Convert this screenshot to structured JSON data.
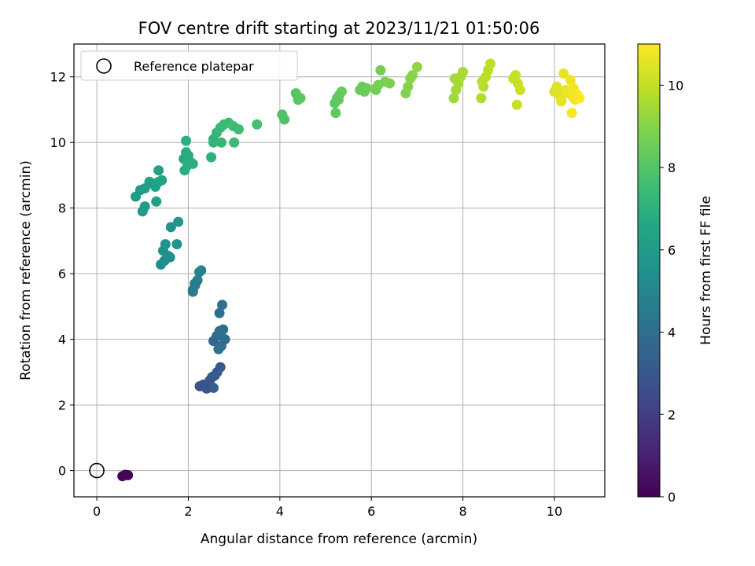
{
  "chart_data": {
    "type": "scatter",
    "title": "FOV centre drift starting at 2023/11/21 01:50:06",
    "xlabel": "Angular distance from reference (arcmin)",
    "ylabel": "Rotation from reference (arcmin)",
    "xlim": [
      -0.5,
      11.1
    ],
    "ylim": [
      -0.8,
      13.0
    ],
    "xticks": [
      0,
      2,
      4,
      6,
      8,
      10
    ],
    "yticks": [
      0,
      2,
      4,
      6,
      8,
      10,
      12
    ],
    "grid": true,
    "legend": {
      "placement": "top-left",
      "entries": [
        {
          "label": "Reference platepar",
          "marker": "open-circle"
        }
      ]
    },
    "reference_point": {
      "x": 0,
      "y": 0
    },
    "colorbar": {
      "label": "Hours from first FF file",
      "colormap": "viridis",
      "range": [
        0,
        11
      ],
      "ticks": [
        0,
        2,
        4,
        6,
        8,
        10
      ]
    },
    "series": [
      {
        "x": [
          0.56,
          0.62,
          0.68,
          2.25,
          2.33,
          2.4,
          2.47,
          2.52,
          2.58,
          2.63,
          2.7,
          2.55,
          2.55,
          2.62,
          2.68,
          2.72,
          2.76,
          2.8,
          2.68,
          2.74,
          2.66,
          2.7,
          2.1,
          2.15,
          2.2,
          2.24,
          2.28,
          2.1,
          2.14,
          1.4,
          1.48,
          1.55,
          1.6,
          1.45,
          1.5,
          1.75,
          1.62,
          1.78,
          0.85,
          0.95,
          1.05,
          1.15,
          1.22,
          1.28,
          1.35,
          1.42,
          1.0,
          1.05,
          1.3,
          1.35,
          1.9,
          1.95,
          2.0,
          1.92,
          2.05,
          2.1,
          1.95,
          1.98,
          2.5,
          2.55,
          2.62,
          2.7,
          2.78,
          2.88,
          2.98,
          3.1,
          2.55,
          2.72,
          3.0,
          3.5,
          4.05,
          4.1,
          4.35,
          4.4,
          4.45,
          5.2,
          5.25,
          5.3,
          5.35,
          5.22,
          5.28,
          5.75,
          5.8,
          5.85,
          5.9,
          6.1,
          6.15,
          6.2,
          6.3,
          6.4,
          6.1,
          6.75,
          6.8,
          6.85,
          6.9,
          7.0,
          7.8,
          7.85,
          7.9,
          7.95,
          8.0,
          7.82,
          8.4,
          8.45,
          8.5,
          8.55,
          8.6,
          8.42,
          9.1,
          9.15,
          9.2,
          9.25,
          9.18,
          10.0,
          10.05,
          10.1,
          10.15,
          10.2,
          10.25,
          10.3,
          10.35,
          10.4,
          10.45,
          10.5,
          10.55,
          10.38,
          10.15,
          10.42
        ],
        "y": [
          -0.17,
          -0.13,
          -0.14,
          2.57,
          2.62,
          2.5,
          2.75,
          2.85,
          2.9,
          3.0,
          3.15,
          2.52,
          3.95,
          4.1,
          4.25,
          3.8,
          4.3,
          4.0,
          4.8,
          5.05,
          3.7,
          4.2,
          5.5,
          5.65,
          5.8,
          6.05,
          6.1,
          5.45,
          5.7,
          6.28,
          6.4,
          6.55,
          6.5,
          6.7,
          6.9,
          6.9,
          7.42,
          7.58,
          8.35,
          8.55,
          8.6,
          8.8,
          8.75,
          8.65,
          8.8,
          8.85,
          7.9,
          8.05,
          8.2,
          9.15,
          9.5,
          9.7,
          9.6,
          9.15,
          9.4,
          9.35,
          10.05,
          9.3,
          9.55,
          10.1,
          10.3,
          10.45,
          10.55,
          10.6,
          10.5,
          10.4,
          10.0,
          10.0,
          10.0,
          10.55,
          10.85,
          10.7,
          11.5,
          11.3,
          11.35,
          11.2,
          11.35,
          11.45,
          11.55,
          10.9,
          11.3,
          11.6,
          11.7,
          11.55,
          11.65,
          11.6,
          11.75,
          12.2,
          11.85,
          11.8,
          11.65,
          11.5,
          11.7,
          11.95,
          12.05,
          12.3,
          11.35,
          11.6,
          11.8,
          12.0,
          12.15,
          11.95,
          11.35,
          11.7,
          12.0,
          12.2,
          12.4,
          11.85,
          11.95,
          12.05,
          11.8,
          11.6,
          11.15,
          11.55,
          11.7,
          11.45,
          11.3,
          12.1,
          11.6,
          11.5,
          11.9,
          11.4,
          11.3,
          11.45,
          11.35,
          10.9,
          11.25,
          11.65
        ],
        "hours": [
          0.0,
          0.05,
          0.1,
          2.8,
          2.85,
          2.9,
          2.95,
          3.0,
          3.05,
          3.1,
          3.15,
          3.2,
          3.6,
          3.7,
          3.8,
          3.85,
          3.9,
          3.95,
          4.0,
          4.05,
          4.1,
          4.15,
          4.5,
          4.6,
          4.7,
          4.8,
          4.9,
          4.55,
          4.65,
          5.3,
          5.35,
          5.4,
          5.45,
          5.5,
          5.55,
          5.6,
          5.65,
          5.7,
          6.0,
          6.05,
          6.1,
          6.15,
          6.2,
          6.25,
          6.3,
          6.35,
          6.0,
          6.05,
          6.1,
          6.2,
          6.7,
          6.75,
          6.8,
          6.85,
          6.9,
          6.95,
          7.0,
          6.88,
          7.0,
          7.1,
          7.2,
          7.3,
          7.4,
          7.45,
          7.5,
          7.55,
          7.15,
          7.25,
          7.4,
          7.7,
          7.9,
          7.95,
          8.0,
          8.05,
          8.1,
          8.2,
          8.25,
          8.3,
          8.35,
          8.28,
          8.32,
          8.4,
          8.45,
          8.5,
          8.55,
          8.6,
          8.65,
          8.7,
          8.75,
          8.8,
          8.7,
          8.9,
          8.95,
          9.0,
          9.05,
          9.1,
          9.4,
          9.45,
          9.5,
          9.55,
          9.6,
          9.5,
          9.7,
          9.75,
          9.8,
          9.85,
          9.9,
          9.8,
          10.0,
          10.05,
          10.1,
          10.15,
          10.1,
          10.4,
          10.45,
          10.5,
          10.55,
          10.6,
          10.65,
          10.7,
          10.75,
          10.8,
          10.85,
          10.9,
          10.95,
          10.85,
          10.6,
          10.8
        ]
      }
    ]
  }
}
